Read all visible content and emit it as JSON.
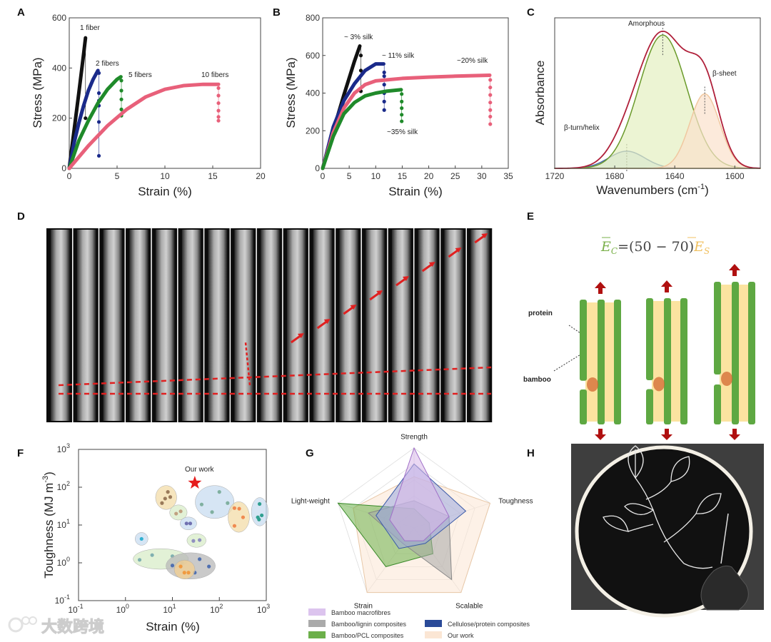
{
  "panels": {
    "A": "A",
    "B": "B",
    "C": "C",
    "D": "D",
    "E": "E",
    "F": "F",
    "G": "G",
    "H": "H"
  },
  "watermark": "大数跨境",
  "colors": {
    "black": "#111111",
    "navy": "#1a2a8a",
    "green": "#1f8a2a",
    "pink": "#e8607a",
    "red": "#d22",
    "bamboo": "#5ea842",
    "protein": "#fbe3a0"
  },
  "chart_data": [
    {
      "id": "A",
      "type": "line",
      "title": "",
      "xlabel": "Strain (%)",
      "ylabel": "Stress (MPa)",
      "xlim": [
        0,
        20
      ],
      "ylim": [
        0,
        600
      ],
      "xticks": [
        0,
        5,
        10,
        15,
        20
      ],
      "yticks": [
        0,
        200,
        400,
        600
      ],
      "series": [
        {
          "name": "1 fiber",
          "color": "#111111",
          "x": [
            0,
            0.5,
            1,
            1.5,
            1.7
          ],
          "y": [
            0,
            150,
            300,
            455,
            520
          ],
          "drop": [
            1.7,
            [
              200
            ]
          ]
        },
        {
          "name": "2 fibers",
          "color": "#1a2a8a",
          "x": [
            0,
            0.5,
            1,
            1.5,
            2,
            2.5,
            3
          ],
          "y": [
            0,
            100,
            180,
            250,
            310,
            355,
            390
          ],
          "drop": [
            3.1,
            [
              380,
              300,
              270,
              250,
              185,
              50
            ]
          ]
        },
        {
          "name": "5 fibers",
          "color": "#1f8a2a",
          "x": [
            0,
            1,
            2,
            3,
            4,
            5,
            5.4
          ],
          "y": [
            0,
            110,
            190,
            260,
            315,
            355,
            365
          ],
          "drop": [
            5.45,
            [
              350,
              310,
              275,
              235,
              210
            ]
          ]
        },
        {
          "name": "10 fibers",
          "color": "#e8607a",
          "x": [
            0,
            2,
            4,
            6,
            8,
            10,
            12,
            14,
            15.6
          ],
          "y": [
            0,
            90,
            170,
            235,
            285,
            315,
            330,
            335,
            335
          ],
          "drop": [
            15.6,
            [
              320,
              290,
              260,
              230,
              205,
              190
            ]
          ]
        }
      ]
    },
    {
      "id": "B",
      "type": "line",
      "title": "",
      "xlabel": "Strain (%)",
      "ylabel": "Stress (MPa)",
      "xlim": [
        0,
        35
      ],
      "ylim": [
        0,
        800
      ],
      "xticks": [
        0,
        5,
        10,
        15,
        20,
        25,
        30,
        35
      ],
      "yticks": [
        0,
        200,
        400,
        600,
        800
      ],
      "series": [
        {
          "name": "~ 3% silk",
          "color": "#111111",
          "x": [
            0,
            2,
            4,
            6,
            7
          ],
          "y": [
            0,
            200,
            390,
            570,
            650
          ],
          "drop": [
            7.2,
            [
              600,
              520,
              410
            ]
          ]
        },
        {
          "name": "~ 11% silk",
          "color": "#1a2a8a",
          "x": [
            0,
            2,
            4,
            6,
            8,
            10,
            11.5
          ],
          "y": [
            0,
            220,
            360,
            450,
            520,
            555,
            555
          ],
          "drop": [
            11.6,
            [
              510,
              490,
              445,
              400,
              355,
              310
            ]
          ]
        },
        {
          "name": "~20% silk",
          "color": "#e8607a",
          "x": [
            0,
            2,
            4,
            6,
            8,
            10,
            15,
            20,
            25,
            31.5
          ],
          "y": [
            0,
            190,
            320,
            400,
            445,
            465,
            478,
            485,
            490,
            495
          ],
          "drop": [
            31.6,
            [
              470,
              430,
              390,
              350,
              310,
              275,
              235
            ]
          ]
        },
        {
          "name": "~35% silk",
          "color": "#1f8a2a",
          "x": [
            0,
            2,
            4,
            6,
            8,
            10,
            12,
            14.8
          ],
          "y": [
            0,
            170,
            290,
            350,
            385,
            400,
            410,
            418
          ],
          "drop": [
            14.9,
            [
              395,
              355,
              320,
              285,
              250
            ]
          ]
        }
      ]
    },
    {
      "id": "C",
      "type": "area",
      "title": "",
      "xlabel": "Wavenumbers (cm",
      "xlabel_sup": "-1",
      "xlabel_end": ")",
      "ylabel": "Absorbance",
      "xlim": [
        1720,
        1583
      ],
      "ylim": [
        0,
        1.05
      ],
      "xticks": [
        1720,
        1680,
        1640,
        1600
      ],
      "components": [
        {
          "name": "β-turn/helix",
          "center": 1672,
          "amplitude": 0.12,
          "width": 12,
          "stroke": "#4a6aa8",
          "fill": "#c8d8ee"
        },
        {
          "name": "Amorphous",
          "center": 1648,
          "amplitude": 0.93,
          "width": 16,
          "stroke": "#6a9a2a",
          "fill": "#e4f0c0"
        },
        {
          "name": "β-sheet",
          "center": 1620,
          "amplitude": 0.52,
          "width": 10,
          "stroke": "#f0c8a0",
          "fill": "#fbe1cc"
        }
      ],
      "sum_color": "#b0203a"
    },
    {
      "id": "F",
      "type": "scatter",
      "scale": "log-log",
      "title": "",
      "xlabel": "Strain (%)",
      "ylabel": "Toughness (MJ m",
      "ylabel_sup": "-3",
      "ylabel_end": ")",
      "xlim_exp": [
        -1,
        3
      ],
      "ylim_exp": [
        -1,
        3
      ],
      "xticks": [
        "10",
        "10",
        "10",
        "10",
        "10"
      ],
      "xtick_exp": [
        "-1",
        "0",
        "1",
        "2",
        "3"
      ],
      "highlight": {
        "label": "Our work",
        "x": 30,
        "y": 130,
        "color": "#e51c1c"
      },
      "groups": [
        {
          "fill": "#f3dca8",
          "marker": "#9a7a5a",
          "points": [
            [
              8,
              75
            ],
            [
              7,
              50
            ],
            [
              6,
              38
            ],
            [
              9,
              55
            ]
          ]
        },
        {
          "fill": "#d8ecc8",
          "marker": "#c0a080",
          "points": [
            [
              12,
              20
            ],
            [
              15,
              23
            ]
          ]
        },
        {
          "fill": "#c8dcf0",
          "marker": "#7070b0",
          "points": [
            [
              20,
              11
            ],
            [
              24,
              11
            ]
          ]
        },
        {
          "fill": "#c8dcf0",
          "marker": "#30b0d0",
          "points": [
            [
              2.2,
              4.3
            ]
          ]
        },
        {
          "fill": "#d8ecc8",
          "marker": "#9090c0",
          "points": [
            [
              28,
              3.8
            ],
            [
              38,
              4
            ]
          ]
        },
        {
          "fill": "#d8ecc8",
          "marker": "#80b0b0",
          "points": [
            [
              3.7,
              1.6
            ],
            [
              10,
              1.5
            ],
            [
              2,
              1.2
            ],
            [
              16,
              1.0
            ]
          ]
        },
        {
          "fill": "#b8b8b8",
          "marker": "#5070b0",
          "points": [
            [
              10,
              0.85
            ],
            [
              38,
              1.25
            ],
            [
              30,
              0.55
            ],
            [
              60,
              0.8
            ]
          ]
        },
        {
          "fill": "#f3cf90",
          "marker": "#f09a40",
          "points": [
            [
              15,
              0.8
            ],
            [
              18,
              0.55
            ],
            [
              22,
              0.55
            ]
          ]
        },
        {
          "fill": "#c8dcf0",
          "marker": "#80b0a0",
          "points": [
            [
              42,
              35
            ],
            [
              100,
              75
            ],
            [
              150,
              38
            ],
            [
              70,
              22
            ]
          ]
        },
        {
          "fill": "#f3dca8",
          "marker": "#f08a50",
          "points": [
            [
              210,
              28
            ],
            [
              265,
              27
            ],
            [
              320,
              16
            ],
            [
              210,
              9.5
            ]
          ]
        },
        {
          "fill": "#c8dcf0",
          "marker": "#30a090",
          "points": [
            [
              720,
              36
            ],
            [
              660,
              16
            ],
            [
              800,
              18
            ],
            [
              700,
              14
            ]
          ]
        }
      ]
    },
    {
      "id": "G",
      "type": "radar",
      "title": "",
      "axes": [
        "Strength",
        "Toughness",
        "Scalable",
        "Strain",
        "Light-weight"
      ],
      "rmax": 5,
      "rings": 5,
      "series": [
        {
          "name": "Our work",
          "fill": "#fbe6d4",
          "stroke": "#e8c8a8",
          "values": [
            3.2,
            5,
            5,
            5,
            4
          ]
        },
        {
          "name": "Bamboo/PCL composites",
          "fill": "#6cb04a",
          "stroke": "#3a8a2a",
          "values": [
            1.2,
            1,
            2,
            3,
            5
          ]
        },
        {
          "name": "Bamboo/lignin composites",
          "fill": "#a8a8a8",
          "stroke": "#888888",
          "values": [
            1.7,
            2.3,
            4,
            1.2,
            3
          ]
        },
        {
          "name": "Cellulose/protein composites",
          "fill": "#9aa8e0",
          "stroke": "#3a5aa8",
          "values": [
            4,
            3.4,
            1.2,
            1.6,
            2.5
          ]
        },
        {
          "name": "Bamboo macrofibres",
          "fill": "#d8b8ea",
          "stroke": "#a070c8",
          "values": [
            5,
            2.3,
            1,
            1,
            1.6
          ]
        }
      ],
      "legend": [
        {
          "label": "Bamboo macrofibres",
          "color": "#dcc4ee"
        },
        {
          "label": "Bamboo/lignin composites",
          "color": "#aaaaaa"
        },
        {
          "label": "Bamboo/PCL composites",
          "color": "#6cb04a"
        },
        {
          "label": "Cellulose/protein composites",
          "color": "#2a4a98"
        },
        {
          "label": "Our work",
          "color": "#fbe6d4"
        }
      ]
    }
  ],
  "panel_e": {
    "equation_lhs": "E",
    "equation_lhs_sub": "C",
    "equation_mid": "=(50 − 70)",
    "equation_rhs": "E",
    "equation_rhs_sub": "S",
    "label_protein": "protein",
    "label_bamboo": "bamboo"
  },
  "panel_d": {
    "frames": 17
  }
}
